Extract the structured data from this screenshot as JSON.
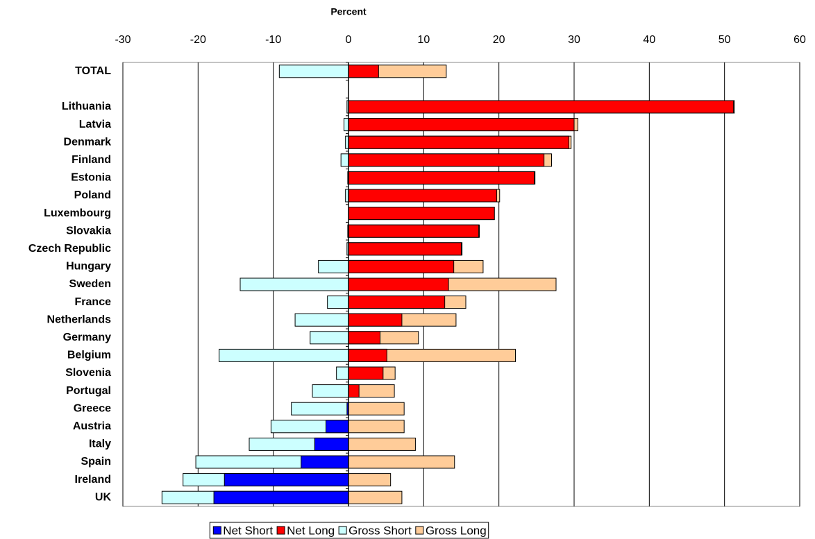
{
  "chart_data": {
    "type": "bar",
    "orientation": "horizontal",
    "overlap": true,
    "x_label": "Percent",
    "categories": [
      "TOTAL",
      null,
      "Lithuania",
      "Latvia",
      "Denmark",
      "Finland",
      "Estonia",
      "Poland",
      "Luxembourg",
      "Slovakia",
      "Czech Republic",
      "Hungary",
      "Sweden",
      "France",
      "Netherlands",
      "Germany",
      "Belgium",
      "Slovenia",
      "Portugal",
      "Greece",
      "Austria",
      "Italy",
      "Spain",
      "Ireland",
      "UK"
    ],
    "series": [
      {
        "name": "Net Short",
        "color": "#0000ff",
        "values": [
          null,
          null,
          null,
          null,
          null,
          null,
          null,
          null,
          null,
          null,
          null,
          null,
          null,
          null,
          null,
          null,
          null,
          null,
          null,
          -0.2,
          -3,
          -4.5,
          -6.3,
          -16.5,
          -17.9
        ]
      },
      {
        "name": "Net Long",
        "color": "#ff0000",
        "values": [
          4,
          null,
          51.2,
          30,
          29.3,
          26,
          24.7,
          19.7,
          19.4,
          17.3,
          15,
          14,
          13.3,
          12.8,
          7.1,
          4.2,
          5.1,
          4.6,
          1.4,
          null,
          null,
          null,
          null,
          null,
          null
        ]
      },
      {
        "name": "Gross Short",
        "color": "#ccffff",
        "values": [
          -9.2,
          null,
          -0.2,
          -0.6,
          -0.4,
          -1,
          -0.1,
          -0.4,
          null,
          -0.1,
          -0.2,
          -4,
          -14.4,
          -2.8,
          -7.1,
          -5.1,
          -17.2,
          -1.6,
          -4.8,
          -7.6,
          -10.3,
          -13.2,
          -20.3,
          -22,
          -24.8
        ]
      },
      {
        "name": "Gross Long",
        "color": "#ffcc99",
        "values": [
          13,
          null,
          51.3,
          30.5,
          29.6,
          27,
          24.8,
          20.1,
          19.4,
          17.4,
          15.1,
          17.9,
          27.6,
          15.6,
          14.3,
          9.3,
          22.2,
          6.2,
          6.1,
          7.4,
          7.4,
          8.9,
          14.1,
          5.6,
          7.1
        ]
      }
    ],
    "xlim": [
      -30,
      60
    ],
    "xticks": [
      -30,
      -20,
      -10,
      0,
      10,
      20,
      30,
      40,
      50,
      60
    ],
    "grid": true,
    "legend": "bottom"
  }
}
